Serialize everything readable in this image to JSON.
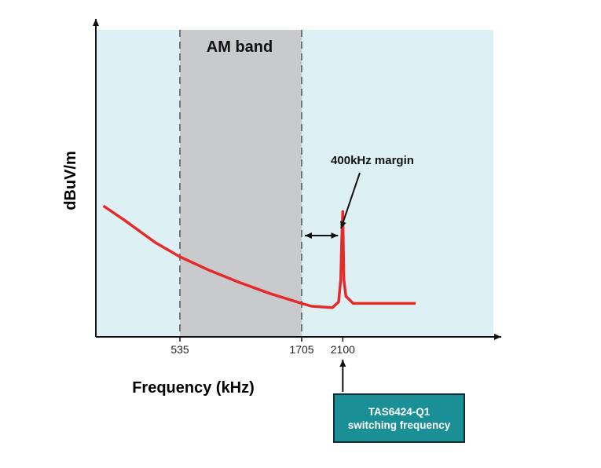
{
  "chart_data": {
    "type": "line",
    "title": "",
    "xlabel": "Frequency (kHz)",
    "ylabel": "dBuV/m",
    "x_ticks": [
      535,
      1705,
      2100
    ],
    "x_tick_labels": [
      "535",
      "1705",
      "2100"
    ],
    "shaded_band": {
      "label": "AM band",
      "x_start": 535,
      "x_end": 1705,
      "color": "#c9cacc"
    },
    "annotation": {
      "label": "400kHz margin",
      "x_start": 1705,
      "x_end": 2100
    },
    "callout": {
      "line1": "TAS6424-Q1",
      "line2": "switching frequency",
      "x": 2100
    },
    "series": [
      {
        "color": "#e52a2a",
        "x": [
          -200,
          0,
          300,
          535,
          800,
          1100,
          1400,
          1705,
          1800,
          2000,
          2060,
          2080,
          2090,
          2100,
          2110,
          2130,
          2200,
          2500,
          2800
        ],
        "y": [
          0.38,
          0.33,
          0.25,
          0.2,
          0.155,
          0.11,
          0.07,
          0.035,
          0.025,
          0.02,
          0.04,
          0.12,
          0.26,
          0.36,
          0.12,
          0.06,
          0.035,
          0.035,
          0.035
        ]
      }
    ],
    "background_color": "#ddf0f3",
    "grid": false
  }
}
